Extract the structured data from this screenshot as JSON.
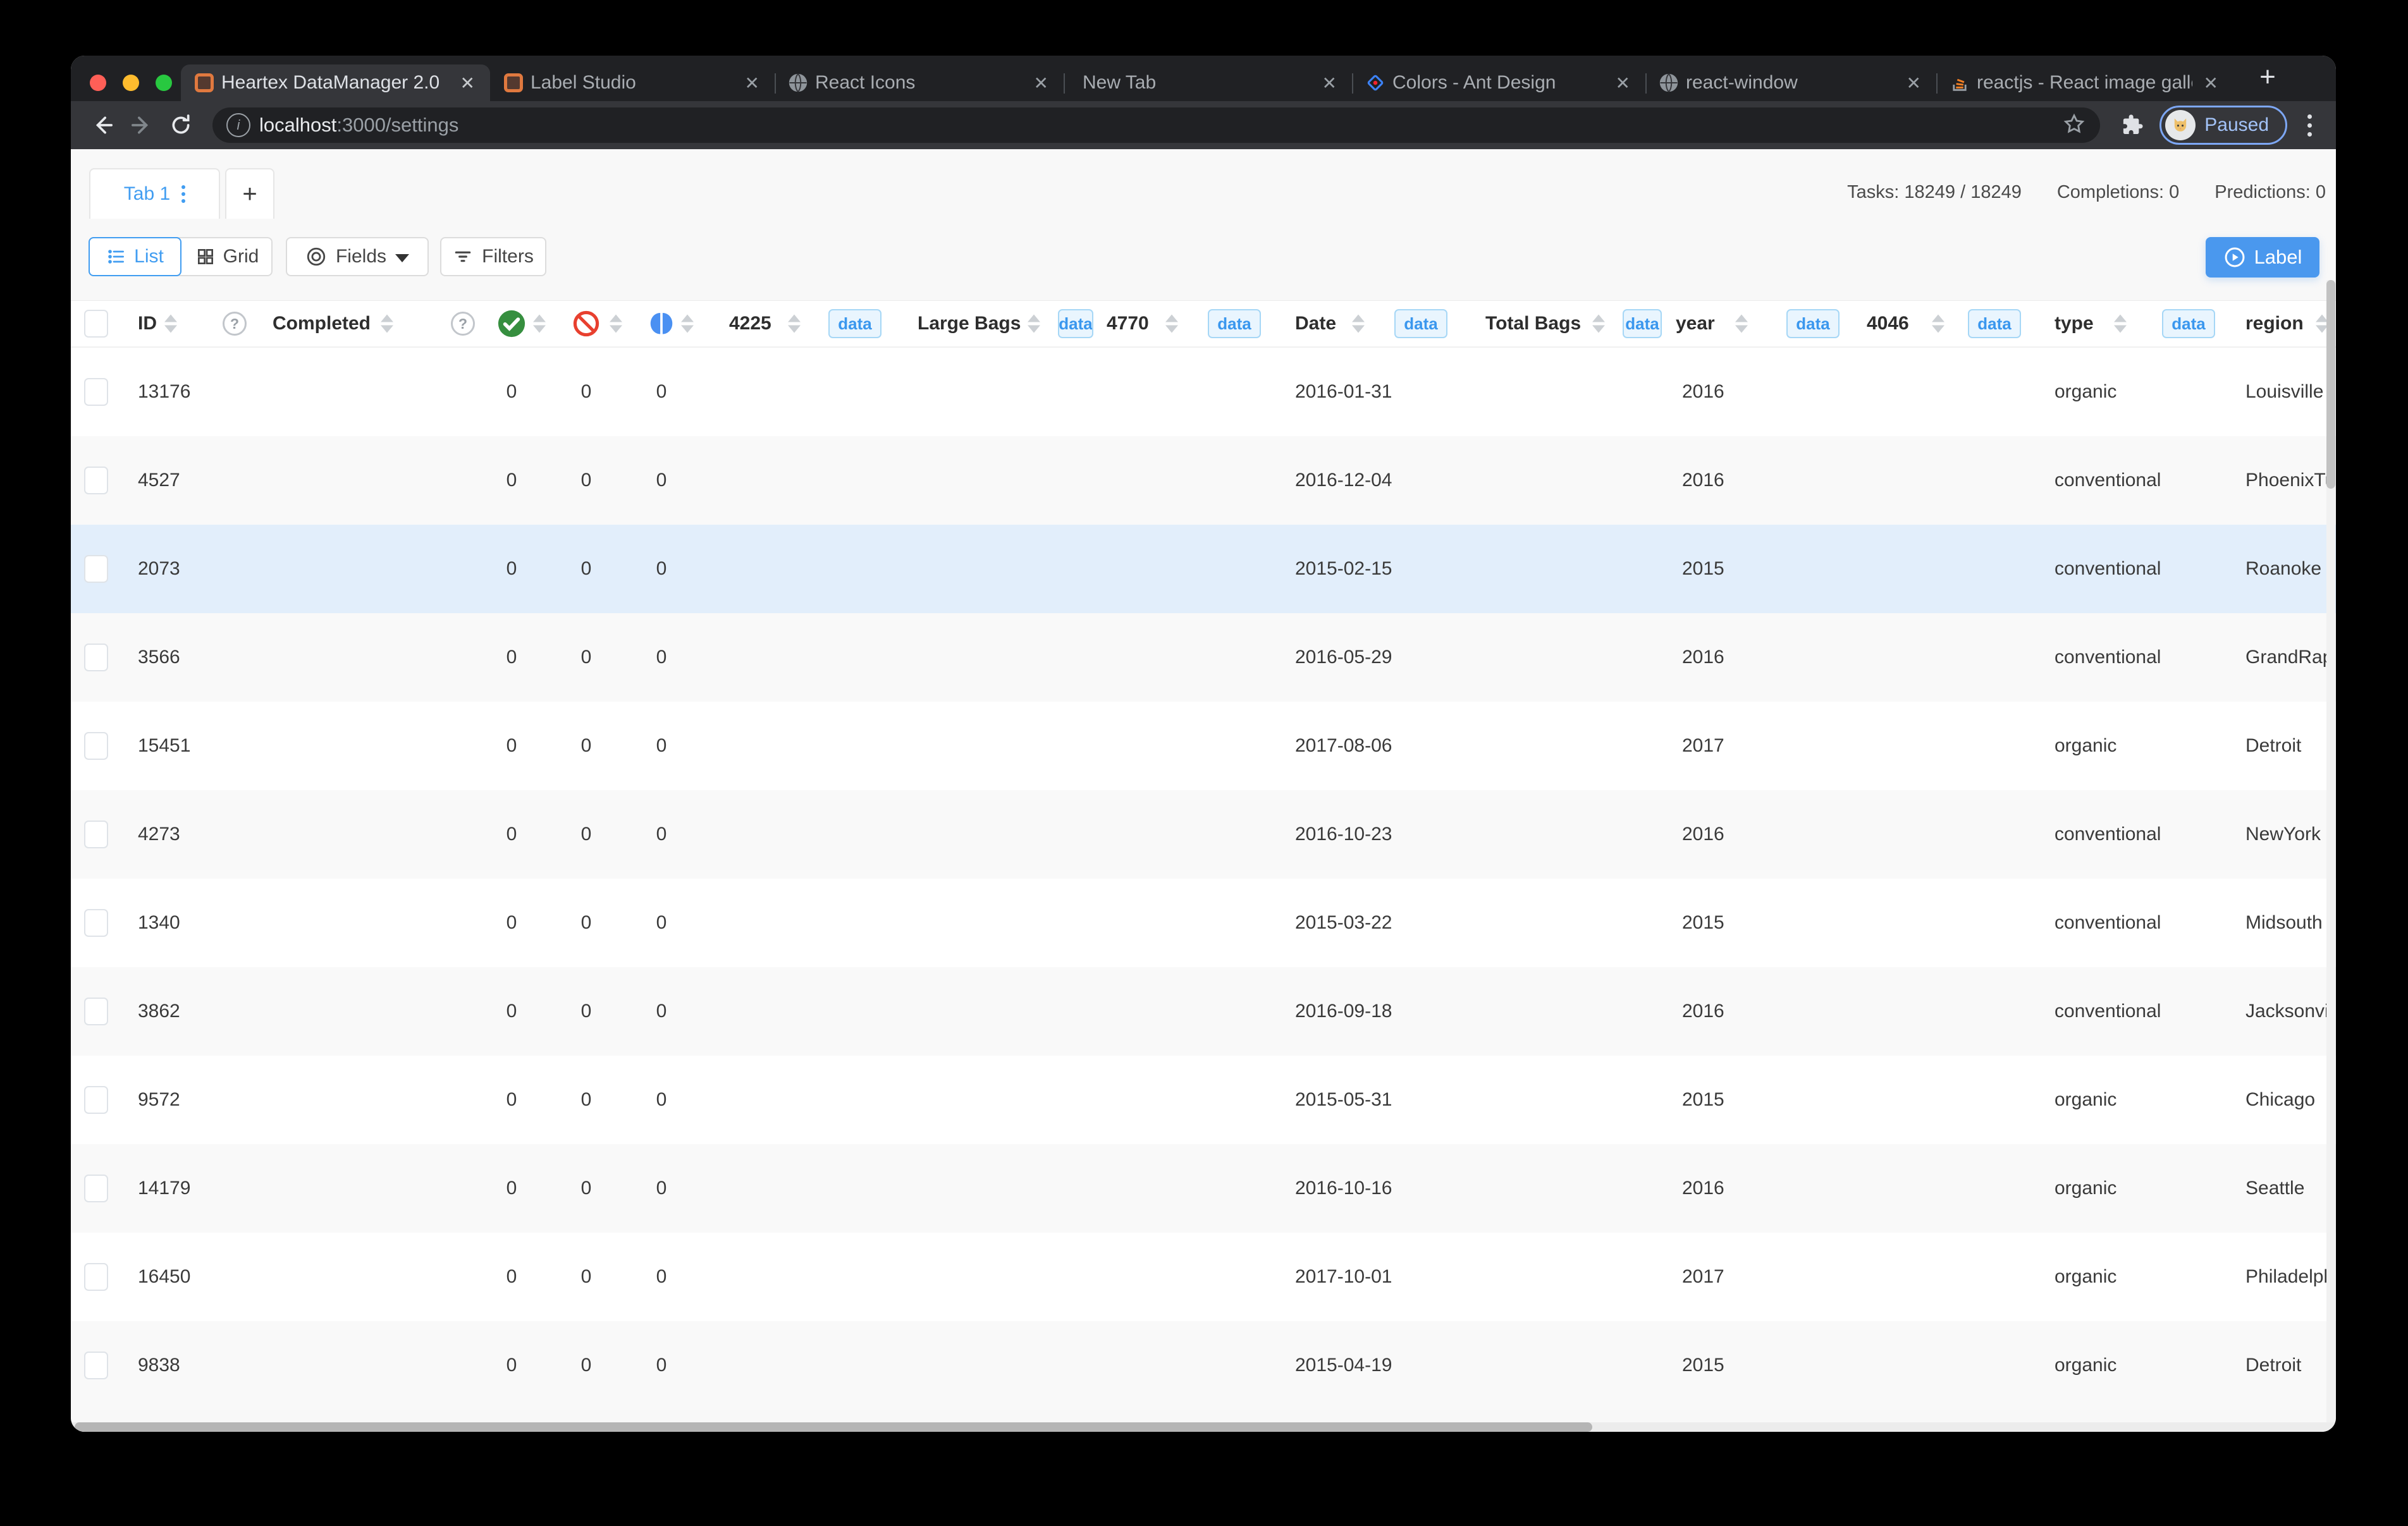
{
  "browser": {
    "tabs": [
      {
        "title": "Heartex DataManager 2.0",
        "favicon": "labelstudio-icon",
        "active": true
      },
      {
        "title": "Label Studio",
        "favicon": "labelstudio-icon",
        "active": false
      },
      {
        "title": "React Icons",
        "favicon": "globe-icon",
        "active": false
      },
      {
        "title": "New Tab",
        "favicon": "none",
        "active": false
      },
      {
        "title": "Colors - Ant Design",
        "favicon": "ant-design-icon",
        "active": false
      },
      {
        "title": "react-window",
        "favicon": "globe-icon",
        "active": false
      },
      {
        "title": "reactjs - React image gallery",
        "favicon": "stackoverflow-icon",
        "active": false
      }
    ],
    "close_glyph": "✕",
    "new_tab_label": "+",
    "url": {
      "host": "localhost",
      "rest": ":3000/settings"
    },
    "profile": {
      "label": "Paused"
    }
  },
  "page": {
    "view_tab": {
      "label": "Tab 1"
    },
    "add_view_label": "+",
    "counters": [
      "Tasks: 18249 / 18249",
      "Completions: 0",
      "Predictions: 0"
    ],
    "toolbar": {
      "list_label": "List",
      "grid_label": "Grid",
      "fields_label": "Fields",
      "filters_label": "Filters",
      "label_button": "Label"
    }
  },
  "table": {
    "badge_label": "data",
    "headers": {
      "id": "ID",
      "completed": "Completed",
      "col4225": "4225",
      "large_bags": "Large Bags",
      "col4770": "4770",
      "date": "Date",
      "total_bags": "Total Bags",
      "year": "year",
      "col4046": "4046",
      "type": "type",
      "region": "region"
    },
    "header_icons": [
      "help-icon",
      "help-icon",
      "completed-check-icon",
      "cancelled-icon",
      "predictions-icon"
    ],
    "rows": [
      {
        "id": "13176",
        "done": "0",
        "cancel": "0",
        "pred": "0",
        "date": "2016-01-31",
        "year": "2016",
        "type": "organic",
        "region": "Louisville",
        "selected": false
      },
      {
        "id": "4527",
        "done": "0",
        "cancel": "0",
        "pred": "0",
        "date": "2016-12-04",
        "year": "2016",
        "type": "conventional",
        "region": "PhoenixTucson",
        "selected": false
      },
      {
        "id": "2073",
        "done": "0",
        "cancel": "0",
        "pred": "0",
        "date": "2015-02-15",
        "year": "2015",
        "type": "conventional",
        "region": "Roanoke",
        "selected": true
      },
      {
        "id": "3566",
        "done": "0",
        "cancel": "0",
        "pred": "0",
        "date": "2016-05-29",
        "year": "2016",
        "type": "conventional",
        "region": "GrandRapids",
        "selected": false
      },
      {
        "id": "15451",
        "done": "0",
        "cancel": "0",
        "pred": "0",
        "date": "2017-08-06",
        "year": "2017",
        "type": "organic",
        "region": "Detroit",
        "selected": false
      },
      {
        "id": "4273",
        "done": "0",
        "cancel": "0",
        "pred": "0",
        "date": "2016-10-23",
        "year": "2016",
        "type": "conventional",
        "region": "NewYork",
        "selected": false
      },
      {
        "id": "1340",
        "done": "0",
        "cancel": "0",
        "pred": "0",
        "date": "2015-03-22",
        "year": "2015",
        "type": "conventional",
        "region": "Midsouth",
        "selected": false
      },
      {
        "id": "3862",
        "done": "0",
        "cancel": "0",
        "pred": "0",
        "date": "2016-09-18",
        "year": "2016",
        "type": "conventional",
        "region": "Jacksonville",
        "selected": false
      },
      {
        "id": "9572",
        "done": "0",
        "cancel": "0",
        "pred": "0",
        "date": "2015-05-31",
        "year": "2015",
        "type": "organic",
        "region": "Chicago",
        "selected": false
      },
      {
        "id": "14179",
        "done": "0",
        "cancel": "0",
        "pred": "0",
        "date": "2016-10-16",
        "year": "2016",
        "type": "organic",
        "region": "Seattle",
        "selected": false
      },
      {
        "id": "16450",
        "done": "0",
        "cancel": "0",
        "pred": "0",
        "date": "2017-10-01",
        "year": "2017",
        "type": "organic",
        "region": "Philadelphia",
        "selected": false
      },
      {
        "id": "9838",
        "done": "0",
        "cancel": "0",
        "pred": "0",
        "date": "2015-04-19",
        "year": "2015",
        "type": "organic",
        "region": "Detroit",
        "selected": false
      }
    ]
  },
  "colors": {
    "accent_blue": "#419df1",
    "label_button_bg": "#4a98ee",
    "selected_row_bg": "#e2eefb",
    "badge_bg": "#e9f5fe",
    "badge_border": "#a6d7f6",
    "check_green": "#368f3f",
    "cancel_red": "#e8402f",
    "predictions_blue": "#4a90f2"
  }
}
